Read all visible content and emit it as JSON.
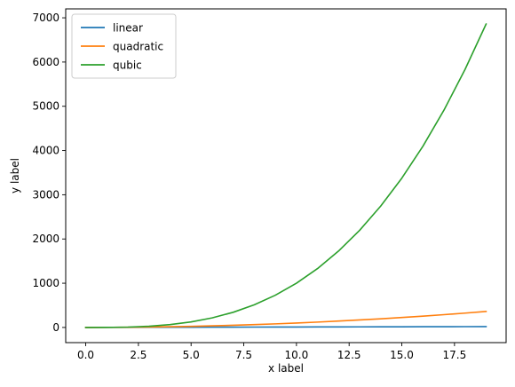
{
  "chart_data": {
    "type": "line",
    "title": "",
    "xlabel": "x label",
    "ylabel": "y label",
    "xlim": [
      -0.95,
      19.95
    ],
    "ylim": [
      -343,
      7202
    ],
    "xticks": [
      0.0,
      2.5,
      5.0,
      7.5,
      10.0,
      12.5,
      15.0,
      17.5
    ],
    "xtick_labels": [
      "0.0",
      "2.5",
      "5.0",
      "7.5",
      "10.0",
      "12.5",
      "15.0",
      "17.5"
    ],
    "yticks": [
      0,
      1000,
      2000,
      3000,
      4000,
      5000,
      6000,
      7000
    ],
    "ytick_labels": [
      "0",
      "1000",
      "2000",
      "3000",
      "4000",
      "5000",
      "6000",
      "7000"
    ],
    "grid": false,
    "legend_position": "upper-left",
    "x": [
      0,
      1,
      2,
      3,
      4,
      5,
      6,
      7,
      8,
      9,
      10,
      11,
      12,
      13,
      14,
      15,
      16,
      17,
      18,
      19
    ],
    "series": [
      {
        "name": "linear",
        "color": "#1f77b4",
        "values": [
          0,
          1,
          2,
          3,
          4,
          5,
          6,
          7,
          8,
          9,
          10,
          11,
          12,
          13,
          14,
          15,
          16,
          17,
          18,
          19
        ]
      },
      {
        "name": "quadratic",
        "color": "#ff7f0e",
        "values": [
          0,
          1,
          4,
          9,
          16,
          25,
          36,
          49,
          64,
          81,
          100,
          121,
          144,
          169,
          196,
          225,
          256,
          289,
          324,
          361
        ]
      },
      {
        "name": "qubic",
        "color": "#2ca02c",
        "values": [
          0,
          1,
          8,
          27,
          64,
          125,
          216,
          343,
          512,
          729,
          1000,
          1331,
          1728,
          2197,
          2744,
          3375,
          4096,
          4913,
          5832,
          6859
        ]
      }
    ]
  }
}
